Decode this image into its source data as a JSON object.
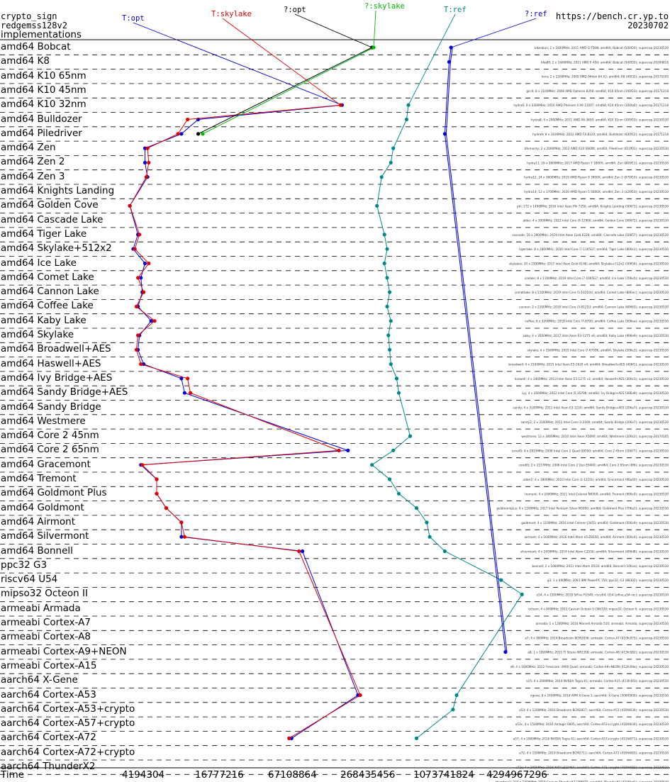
{
  "header": {
    "line1": "crypto_sign",
    "line2": "redgemss128v2",
    "line3": "implementations",
    "site": "https://bench.cr.yp.to",
    "date": "20230702"
  },
  "chart_data": {
    "type": "line",
    "title": "",
    "xlabel": "Time",
    "x_scale": "log2",
    "x_ticks": [
      "4194304",
      "16777216",
      "67108864",
      "268435456",
      "1073741824",
      "4294967296"
    ],
    "x_tick_values": [
      4194304,
      16777216,
      67108864,
      268435456,
      1073741824,
      4294967296
    ],
    "categories": [
      "amd64 Bobcat",
      "amd64 K8",
      "amd64 K10 65nm",
      "amd64 K10 45nm",
      "amd64 K10 32nm",
      "amd64 Bulldozer",
      "amd64 Piledriver",
      "amd64 Zen",
      "amd64 Zen 2",
      "amd64 Zen 3",
      "amd64 Knights Landing",
      "amd64 Golden Cove",
      "amd64 Cascade Lake",
      "amd64 Tiger Lake",
      "amd64 Skylake+512x2",
      "amd64 Ice Lake",
      "amd64 Comet Lake",
      "amd64 Cannon Lake",
      "amd64 Coffee Lake",
      "amd64 Kaby Lake",
      "amd64 Skylake",
      "amd64 Broadwell+AES",
      "amd64 Haswell+AES",
      "amd64 Ivy Bridge+AES",
      "amd64 Sandy Bridge+AES",
      "amd64 Sandy Bridge",
      "amd64 Westmere",
      "amd64 Core 2 45nm",
      "amd64 Core 2 65nm",
      "amd64 Gracemont",
      "amd64 Tremont",
      "amd64 Goldmont Plus",
      "amd64 Goldmont",
      "amd64 Airmont",
      "amd64 Silvermont",
      "amd64 Bonnell",
      "ppc32 G3",
      "riscv64 U54",
      "mipso32 Octeon II",
      "armeabi Armada",
      "armeabi Cortex-A7",
      "armeabi Cortex-A8",
      "armeabi Cortex-A9+NEON",
      "armeabi Cortex-A15",
      "aarch64 X-Gene",
      "aarch64 Cortex-A53",
      "aarch64 Cortex-A53+crypto",
      "aarch64 Cortex-A57+crypto",
      "aarch64 Cortex-A72",
      "aarch64 Cortex-A72+crypto",
      "aarch64 ThunderX2"
    ],
    "series": [
      {
        "name": "T:opt",
        "color": "#0000dd",
        "points": [
          {
            "cat": 4,
            "x": 170000000
          },
          {
            "cat": 5,
            "x": 11000000
          },
          {
            "cat": 6,
            "x": 8000000
          },
          {
            "cat": 7,
            "x": 4000000
          },
          {
            "cat": 8,
            "x": 4000000
          },
          {
            "cat": 9,
            "x": 4200000
          },
          {
            "cat": 11,
            "x": 3000000
          },
          {
            "cat": 13,
            "x": 3500000
          },
          {
            "cat": 14,
            "x": 3200000
          },
          {
            "cat": 15,
            "x": 4000000
          },
          {
            "cat": 16,
            "x": 3700000
          },
          {
            "cat": 17,
            "x": 3800000
          },
          {
            "cat": 18,
            "x": 3500000
          },
          {
            "cat": 19,
            "x": 4500000
          },
          {
            "cat": 20,
            "x": 3600000
          },
          {
            "cat": 21,
            "x": 3500000
          },
          {
            "cat": 22,
            "x": 3900000
          },
          {
            "cat": 23,
            "x": 8000000
          },
          {
            "cat": 24,
            "x": 8500000
          },
          {
            "cat": 28,
            "x": 190000000
          },
          {
            "cat": 29,
            "x": 3700000
          },
          {
            "cat": 30,
            "x": 5000000
          },
          {
            "cat": 31,
            "x": 5000000
          },
          {
            "cat": 32,
            "x": 6000000
          },
          {
            "cat": 33,
            "x": 8000000
          },
          {
            "cat": 34,
            "x": 8000000
          },
          {
            "cat": 35,
            "x": 80000000
          },
          {
            "cat": 45,
            "x": 230000000
          },
          {
            "cat": 48,
            "x": 65000000
          }
        ]
      },
      {
        "name": "T:skylake",
        "color": "#dd0000",
        "points": [
          {
            "cat": 4,
            "x": 165000000
          },
          {
            "cat": 5,
            "x": 9000000
          },
          {
            "cat": 6,
            "x": 7500000
          },
          {
            "cat": 7,
            "x": 4200000
          },
          {
            "cat": 8,
            "x": 4300000
          },
          {
            "cat": 9,
            "x": 4100000
          },
          {
            "cat": 11,
            "x": 3000000
          },
          {
            "cat": 13,
            "x": 3600000
          },
          {
            "cat": 14,
            "x": 3300000
          },
          {
            "cat": 15,
            "x": 4300000
          },
          {
            "cat": 16,
            "x": 3500000
          },
          {
            "cat": 17,
            "x": 3900000
          },
          {
            "cat": 18,
            "x": 3400000
          },
          {
            "cat": 19,
            "x": 4800000
          },
          {
            "cat": 20,
            "x": 3500000
          },
          {
            "cat": 21,
            "x": 3400000
          },
          {
            "cat": 22,
            "x": 3700000
          },
          {
            "cat": 23,
            "x": 9000000
          },
          {
            "cat": 24,
            "x": 9500000
          },
          {
            "cat": 28,
            "x": 160000000
          },
          {
            "cat": 29,
            "x": 3800000
          },
          {
            "cat": 30,
            "x": 5000000
          },
          {
            "cat": 31,
            "x": 5000000
          },
          {
            "cat": 32,
            "x": 6000000
          },
          {
            "cat": 33,
            "x": 8000000
          },
          {
            "cat": 34,
            "x": 8500000
          },
          {
            "cat": 35,
            "x": 75000000
          },
          {
            "cat": 45,
            "x": 240000000
          },
          {
            "cat": 48,
            "x": 62000000
          }
        ]
      },
      {
        "name": "?:opt",
        "color": "#000000",
        "points": [
          {
            "cat": 0,
            "x": 300000000
          },
          {
            "cat": 6,
            "x": 11000000
          }
        ]
      },
      {
        "name": "?:skylake",
        "color": "#00bb00",
        "points": [
          {
            "cat": 0,
            "x": 310000000
          },
          {
            "cat": 6,
            "x": 12000000
          }
        ]
      },
      {
        "name": "T:ref",
        "color": "#008888",
        "points": [
          {
            "cat": 4,
            "x": 600000000
          },
          {
            "cat": 5,
            "x": 580000000
          },
          {
            "cat": 7,
            "x": 450000000
          },
          {
            "cat": 8,
            "x": 430000000
          },
          {
            "cat": 9,
            "x": 360000000
          },
          {
            "cat": 11,
            "x": 330000000
          },
          {
            "cat": 13,
            "x": 380000000
          },
          {
            "cat": 14,
            "x": 400000000
          },
          {
            "cat": 15,
            "x": 380000000
          },
          {
            "cat": 16,
            "x": 400000000
          },
          {
            "cat": 17,
            "x": 420000000
          },
          {
            "cat": 18,
            "x": 400000000
          },
          {
            "cat": 19,
            "x": 430000000
          },
          {
            "cat": 20,
            "x": 410000000
          },
          {
            "cat": 21,
            "x": 420000000
          },
          {
            "cat": 22,
            "x": 430000000
          },
          {
            "cat": 23,
            "x": 480000000
          },
          {
            "cat": 24,
            "x": 500000000
          },
          {
            "cat": 27,
            "x": 620000000
          },
          {
            "cat": 28,
            "x": 450000000
          },
          {
            "cat": 29,
            "x": 300000000
          },
          {
            "cat": 30,
            "x": 420000000
          },
          {
            "cat": 31,
            "x": 500000000
          },
          {
            "cat": 32,
            "x": 700000000
          },
          {
            "cat": 33,
            "x": 850000000
          },
          {
            "cat": 34,
            "x": 900000000
          },
          {
            "cat": 35,
            "x": 1200000000
          },
          {
            "cat": 37,
            "x": 3500000000
          },
          {
            "cat": 38,
            "x": 5200000000
          },
          {
            "cat": 45,
            "x": 1500000000
          },
          {
            "cat": 46,
            "x": 1400000000
          },
          {
            "cat": 48,
            "x": 700000000
          }
        ]
      },
      {
        "name": "?:ref",
        "color": "#0000dd",
        "points": [
          {
            "cat": 0,
            "x": 1350000000
          },
          {
            "cat": 1,
            "x": 1300000000
          },
          {
            "cat": 6,
            "x": 1200000000
          },
          {
            "cat": 42,
            "x": 3800000000
          }
        ]
      }
    ],
    "row_notes": [
      "bikesbun; 2 x 1600MHz; 2011 AMD G-T56N; amd64; Bobcat (500f20); supercop-20230530",
      "h6a80; 2 x 1600MHz; 2011 AMD E-450; amd64; Bobcat (500f20); supercop-20200816",
      "hero; 2 x 2200MHz; 2005 AMD Athlon 64 X2; amd64; K8 (40f32); supercop-20170105",
      "gcc4; 8 x 2100MHz; 2008 AMD Opteron 8356; amd64; K10 65nm (100f23); supercop-20171218",
      "hydra6; 6 x 3300MHz; 2010 AMD Phenom II X6 1100T; amd64; K10 45nm (100fa0); supercop-20171218",
      "hydra8; 4 x 2900MHz; 2011 AMD A6-3650; amd64; K10 32nm (300f10); supercop-20230530",
      "hydra9; 8 x 3100MHz; 2012 AMD FX-8120; amd64; Bulldozer (600f12); supercop-20171218",
      "bfemonty; 2 x 2000MHz; 2012 AMD A10-5800K; amd64; Piledriver (610f01); supercop-20230530",
      "hydra11; 16 x 3800MHz; 2017 AMD Ryzen 7 1800X; amd64; Zen (800f11); supercop-20230530",
      "hydra12; 24 x 3600MHz; 2019 AMD Ryzen 9 3900X; amd64; Zen 2 (870f10); supercop-20230530",
      "hydra14; 12 x 3700MHz; 2020 AMD Ryzen 5 5600X; amd64; Zen 3 (a20f10); supercop-20230530",
      "phi; 272 x 1400MHz; 2016 Intel Xeon Phi 7250; amd64; Knights Landing (50671); supercop-20230530",
      "alder; 4 x 3000MHz; 2022 Intel Core i9-12900; amd64; Golden Cove (90672); supercop-20230530",
      "cascade; 16 x 2900MHz; 2019 Intel Xeon Gold 6226; amd64; Cascade Lake (50657); supercop-20230530",
      "tigerlake; 8 x 2800MHz; 2020 Intel Core i7-1165G7; amd64; Tiger Lake (806c1); supercop-20230530",
      "skylakex; 20 x 2500MHz; 2017 Intel Xeon Gold 6148; amd64; Skylake+512x2 (50654); supercop-20230530",
      "icelake; 8 x 1100MHz; 2019 Intel Core i7-1065G7; amd64; Ice Lake (706e5); supercop-20230530",
      "cometlake; 8 x 2100MHz; 2019 Intel Core i5-10210U; amd64; Comet Lake (806ec); supercop-20230530",
      "cannon; 2 x 2200MHz; 2018 Intel Core i3-8121U; amd64; Cannon Lake (60663); supercop-20230530",
      "coffee; 6 x 3200MHz; 2018 Intel Core i7-8700; amd64; Coffee Lake (906ea); supercop-20230530",
      "kaby; 4 x 3500MHz; 2017 Intel Xeon E3-1275 v6; amd64; Kaby Lake (906e9); supercop-20230530",
      "skylake; 4 x 3500MHz; 2015 Intel Core i7-6700K; amd64; Skylake (506e3); supercop-20230530",
      "broadwell; 4 x 2100MHz; 2015 Intel Xeon E5-2620 v4; amd64; Broadwell+AES (406f1); supercop-20230530",
      "haswell; 4 x 3400MHz; 2013 Intel Xeon E3-1275 v3; amd64; Haswell+AES (306c3); supercop-20230530",
      "ivy; 4 x 3500MHz; 2012 Intel Core i5-3570K; amd64; Ivy Bridge+AES (306a9); supercop-20230530",
      "sandy; 4 x 3100MHz; 2011 Intel Xeon E3-1220; amd64; Sandy Bridge+AES (206a7); supercop-20230530",
      "sandy2; 2 x 3100MHz; 2011 Intel Core i3-2100; amd64; Sandy Bridge (206a7); supercop-20230530",
      "westmere; 12 x 3466MHz; 2010 Intel Xeon X5690; amd64; Westmere (206c2); supercop-20170105",
      "core45; 4 x 2833MHz; 2008 Intel Core 2 Quad Q9550; amd64; Core 2 45nm (10677); supercop-20230530",
      "core65; 2 x 2137MHz; 2006 Intel Core 2 Duo E6400; amd64; Core 2 65nm (6f6); supercop-20230530",
      "alder2; 4 x 1800MHz; 2022 Intel Core i3-1215U; amd64; Gracemont (90a40); supercop-20230530",
      "tremont; 4 x 2000MHz; 2021 Intel Celeron N4500; amd64; Tremont (906c0); supercop-20230530",
      "goldmontplus; 4 x 1100MHz; 2017 Intel Pentium Silver N5000; amd64; Goldmont Plus (706a1); supercop-20230530",
      "goldmont; 4 x 1100MHz; 2016 Intel Celeron J3455; amd64; Goldmont (506c9); supercop-20230530",
      "airmont; 4 x 1600MHz; 2016 Intel Atom x5-Z8350; amd64; Airmont (406c4); supercop-20230530",
      "silvermont; 4 x 2400MHz; 2014 Intel Atom C2550; amd64; Silvermont (406d8); supercop-20230530",
      "bonnell; 2 x 1660MHz; 2011 Intel Atom D510; amd64; Bonnell (106ca); supercop-20230530",
      "g3; 1 x 400MHz; 2003 IBM PowerPC 750; ppc32; G3 (88302); supercop-20230530",
      "u54; 4 x 1500MHz; 2018 SiFive FU540; riscv64; U54 (sifive,u54-mc); supercop-20230530",
      "octeon; 4 x 800MHz; 2012 Cavium Octeon II CN6120; mipso32; Octeon II; supercop-20230530",
      "armada; 1 x 1200MHz; 2010 Marvell Armada 510; armeabi; Armada; supercop-20230530",
      "a7; 4 x 900MHz; 2014 Broadcom BCM2836; armeabi; Cortex-A7 (410fc075); supercop-20230530",
      "a8; 1 x 1000MHz; 2011 TI Sitara AM3358; armeabi; Cortex-A8 (413fc082); supercop-20230530",
      "a9; 4 x 1000MHz; 2012 Freescale i.MX6 Quad; armeabi; Cortex-A9+NEON (412fc09a); supercop-20230530",
      "a15; 4 x 2000MHz; 2014 NVIDIA Tegra K1; armeabi; Cortex-A15 (413fc0f3); supercop-20230530",
      "xgene; 8 x 2400MHz; 2014 APM X-Gene 1; aarch64; X-Gene (500f0000); supercop-20230530",
      "a53; 4 x 1200MHz; 2016 Broadcom BCM2837; aarch64; Cortex-A53 (410fd034); supercop-20230530",
      "a53c; 4 x 1500MHz; 2016 Amlogic S905; aarch64; Cortex-A53+crypto (410fd034); supercop-20230530",
      "a57; 4 x 1900MHz; 2016 NVIDIA Tegra X1; aarch64; Cortex-A57+crypto (411fd071); supercop-20230530",
      "a72; 4 x 1500MHz; 2019 Broadcom BCM2711; aarch64; Cortex-A72 (410fd083); supercop-20230530",
      "a72c; 4 x 2000MHz; 2016 NXP LS1046A; aarch64; Cortex-A72+crypto (410fd082); supercop-20230530",
      "thunderx2; 224 x 2200MHz; 2018 Cavium ThunderX2 CN9975; aarch64; ThunderX2 (431f0af1); supercop-20230530"
    ]
  }
}
